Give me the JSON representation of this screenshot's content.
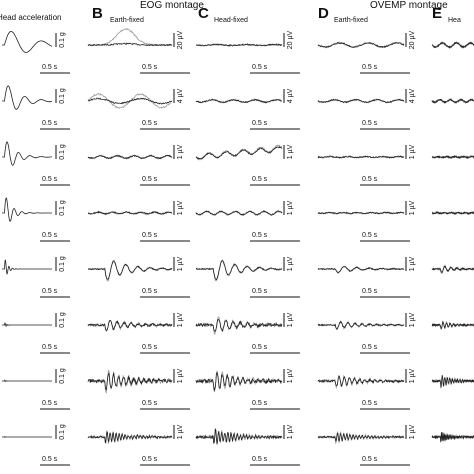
{
  "header": {
    "column_a": "Head  acceleration",
    "panel_b": "B",
    "eog_montage": "EOG montage",
    "b_subtitle": "Earth-fixed",
    "panel_c": "C",
    "c_subtitle": "Head-fixed",
    "ovemp_montage": "OVEMP montage",
    "panel_d": "D",
    "d_subtitle": "Earth-fixed",
    "panel_e": "E",
    "e_subtitle": "Hea"
  },
  "rows": [
    {
      "a": [
        "0.1 g",
        "0.5 s"
      ],
      "b": [
        "20 µV",
        "0.5 s"
      ],
      "c": [
        "20 µV",
        "0.5 s"
      ],
      "d": [
        "20 µV",
        "0.5 s"
      ]
    },
    {
      "a": [
        "0.1 g",
        "0.5 s"
      ],
      "b": [
        "4 µV",
        "0.5 s"
      ],
      "c": [
        "4 µV",
        "0.5 s"
      ],
      "d": [
        "4 µV",
        "0.5 s"
      ]
    },
    {
      "a": [
        "0.1 g",
        "0.5 s"
      ],
      "b": [
        "1 µV",
        "0.5 s"
      ],
      "c": [
        "1 µV",
        "0.5 s"
      ],
      "d": [
        "1 µV",
        "0.5 s"
      ]
    },
    {
      "a": [
        "0.1 g",
        "0.5 s"
      ],
      "b": [
        "1 µV",
        "0.5 s"
      ],
      "c": [
        "1 µV",
        "0.5 s"
      ],
      "d": [
        "1 µV",
        "0.5 s"
      ]
    },
    {
      "a": [
        "0.1 g",
        "0.5 s"
      ],
      "b": [
        "1 µV",
        "0.5 s"
      ],
      "c": [
        "1 µV",
        "0.5 s"
      ],
      "d": [
        "1 µV",
        "0.5 s"
      ]
    },
    {
      "a": [
        "0.1 g",
        "0.5 s"
      ],
      "b": [
        "1 µV",
        "0.5 s"
      ],
      "c": [
        "1 µV",
        "0.5 s"
      ],
      "d": [
        "1 µV",
        "0.5 s"
      ]
    },
    {
      "a": [
        "0.1 g",
        "0.5 s"
      ],
      "b": [
        "1 µV",
        "0.5 s"
      ],
      "c": [
        "1 µV",
        "0.5 s"
      ],
      "d": [
        "1 µV",
        "0.5 s"
      ]
    },
    {
      "a": [
        "0.1 g",
        "0.5 s"
      ],
      "b": [
        "1 µV",
        "0.5 s"
      ],
      "c": [
        "1 µV",
        "0.5 s"
      ],
      "d": [
        "1 µV",
        "0.5 s"
      ]
    }
  ]
}
